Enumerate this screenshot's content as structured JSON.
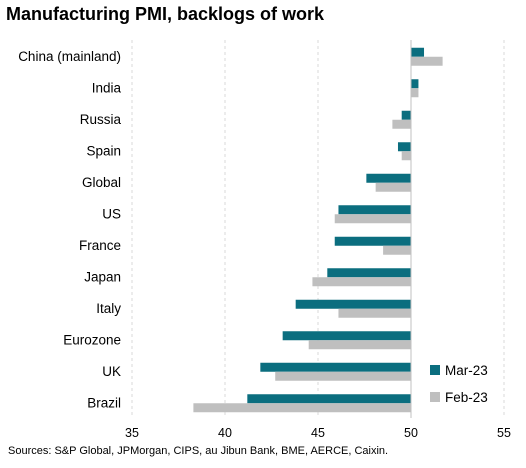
{
  "chart_data": {
    "type": "bar",
    "orientation": "horizontal",
    "title": "Manufacturing PMI, backlogs of work",
    "source": "Sources: S&P Global, JPMorgan, CIPS, au Jibun Bank, BME, AERCE, Caixin.",
    "categories": [
      "China (mainland)",
      "India",
      "Russia",
      "Spain",
      "Global",
      "US",
      "France",
      "Japan",
      "Italy",
      "Eurozone",
      "UK",
      "Brazil"
    ],
    "series": [
      {
        "name": "Mar-23",
        "color": "#0b6e7f",
        "values": [
          50.7,
          50.4,
          49.5,
          49.3,
          47.6,
          46.1,
          45.9,
          45.5,
          43.8,
          43.1,
          41.9,
          41.2
        ]
      },
      {
        "name": "Feb-23",
        "color": "#bfbfbf",
        "values": [
          51.7,
          50.4,
          49.0,
          49.5,
          48.1,
          45.9,
          48.5,
          44.7,
          46.1,
          44.5,
          42.7,
          38.3
        ]
      }
    ],
    "xlim": [
      35,
      55
    ],
    "xticks": [
      35,
      40,
      45,
      50,
      55
    ],
    "grid": "vertical dashed",
    "legend": "bottom-right"
  }
}
